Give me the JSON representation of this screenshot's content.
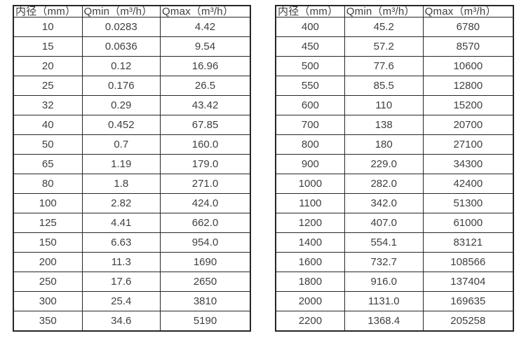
{
  "page": {
    "background": "#ffffff",
    "text_color": "#3f3f3f",
    "border_color": "#262626"
  },
  "tables": [
    {
      "headers": [
        "内径（mm）",
        "Qmin（m³/h）",
        "Qmax（m³/h）"
      ],
      "rows": [
        [
          "10",
          "0.0283",
          "4.42"
        ],
        [
          "15",
          "0.0636",
          "9.54"
        ],
        [
          "20",
          "0.12",
          "16.96"
        ],
        [
          "25",
          "0.176",
          "26.5"
        ],
        [
          "32",
          "0.29",
          "43.42"
        ],
        [
          "40",
          "0.452",
          "67.85"
        ],
        [
          "50",
          "0.7",
          "160.0"
        ],
        [
          "65",
          "1.19",
          "179.0"
        ],
        [
          "80",
          "1.8",
          "271.0"
        ],
        [
          "100",
          "2.82",
          "424.0"
        ],
        [
          "125",
          "4.41",
          "662.0"
        ],
        [
          "150",
          "6.63",
          "954.0"
        ],
        [
          "200",
          "11.3",
          "1690"
        ],
        [
          "250",
          "17.6",
          "2650"
        ],
        [
          "300",
          "25.4",
          "3810"
        ],
        [
          "350",
          "34.6",
          "5190"
        ]
      ]
    },
    {
      "headers": [
        "内径（mm）",
        "Qmin（m³/h）",
        "Qmax（m³/h）"
      ],
      "rows": [
        [
          "400",
          "45.2",
          "6780"
        ],
        [
          "450",
          "57.2",
          "8570"
        ],
        [
          "500",
          "77.6",
          "10600"
        ],
        [
          "550",
          "85.5",
          "12800"
        ],
        [
          "600",
          "110",
          "15200"
        ],
        [
          "700",
          "138",
          "20700"
        ],
        [
          "800",
          "180",
          "27100"
        ],
        [
          "900",
          "229.0",
          "34300"
        ],
        [
          "1000",
          "282.0",
          "42400"
        ],
        [
          "1100",
          "342.0",
          "51300"
        ],
        [
          "1200",
          "407.0",
          "61000"
        ],
        [
          "1400",
          "554.1",
          "83121"
        ],
        [
          "1600",
          "732.7",
          "108566"
        ],
        [
          "1800",
          "916.0",
          "137404"
        ],
        [
          "2000",
          "1131.0",
          "169635"
        ],
        [
          "2200",
          "1368.4",
          "205258"
        ]
      ]
    }
  ]
}
